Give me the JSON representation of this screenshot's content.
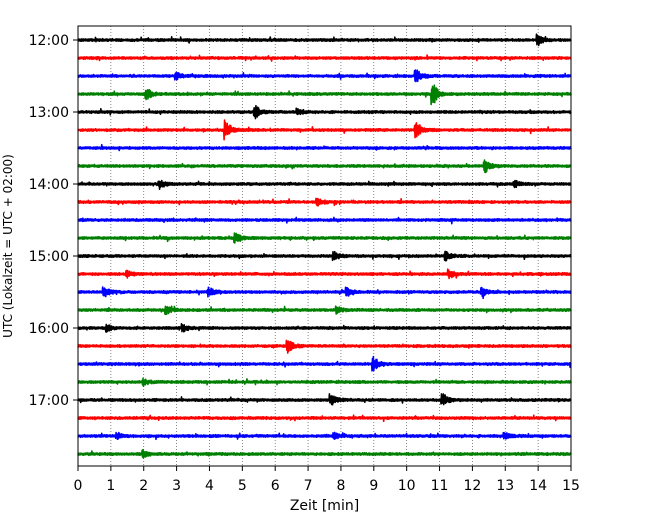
{
  "chart_data": {
    "type": "line",
    "title": "",
    "xlabel": "Zeit  [min]",
    "ylabel": "UTC (Lokalzeit = UTC + 02:00)",
    "xlim": [
      0,
      15
    ],
    "x_ticks": [
      "0",
      "1",
      "2",
      "3",
      "4",
      "5",
      "6",
      "7",
      "8",
      "9",
      "10",
      "11",
      "12",
      "13",
      "14",
      "15"
    ],
    "y_tick_labels": [
      "12:00",
      "13:00",
      "14:00",
      "15:00",
      "16:00",
      "17:00"
    ],
    "grid": "vertical dotted",
    "trace_colors": [
      "#000000",
      "#ff0000",
      "#0000ff",
      "#008000"
    ],
    "traces": [
      {
        "start": "12:00",
        "events": [
          {
            "t": 14.0,
            "amp": 5
          }
        ]
      },
      {
        "start": "12:15",
        "events": []
      },
      {
        "start": "12:30",
        "events": [
          {
            "t": 10.3,
            "amp": 6
          },
          {
            "t": 3.0,
            "amp": 3
          }
        ]
      },
      {
        "start": "12:45",
        "events": [
          {
            "t": 10.8,
            "amp": 11
          },
          {
            "t": 2.1,
            "amp": 5
          }
        ]
      },
      {
        "start": "13:00",
        "events": [
          {
            "t": 5.4,
            "amp": 6
          },
          {
            "t": 6.7,
            "amp": 3
          }
        ]
      },
      {
        "start": "13:15",
        "events": [
          {
            "t": 4.5,
            "amp": 9
          },
          {
            "t": 10.3,
            "amp": 8
          }
        ]
      },
      {
        "start": "13:30",
        "events": []
      },
      {
        "start": "13:45",
        "events": [
          {
            "t": 12.4,
            "amp": 6
          }
        ]
      },
      {
        "start": "14:00",
        "events": [
          {
            "t": 2.5,
            "amp": 4
          },
          {
            "t": 13.3,
            "amp": 3
          }
        ]
      },
      {
        "start": "14:15",
        "events": [
          {
            "t": 7.3,
            "amp": 3
          }
        ]
      },
      {
        "start": "14:30",
        "events": []
      },
      {
        "start": "14:45",
        "events": [
          {
            "t": 4.8,
            "amp": 5
          }
        ]
      },
      {
        "start": "15:00",
        "events": [
          {
            "t": 7.8,
            "amp": 4
          },
          {
            "t": 11.2,
            "amp": 4
          }
        ]
      },
      {
        "start": "15:15",
        "events": [
          {
            "t": 11.3,
            "amp": 4
          },
          {
            "t": 1.5,
            "amp": 3
          }
        ]
      },
      {
        "start": "15:30",
        "events": [
          {
            "t": 0.8,
            "amp": 5
          },
          {
            "t": 4.0,
            "amp": 4
          },
          {
            "t": 8.2,
            "amp": 4
          },
          {
            "t": 12.3,
            "amp": 4
          }
        ]
      },
      {
        "start": "15:45",
        "events": [
          {
            "t": 2.7,
            "amp": 4
          },
          {
            "t": 7.9,
            "amp": 3
          }
        ]
      },
      {
        "start": "16:00",
        "events": [
          {
            "t": 0.9,
            "amp": 3
          },
          {
            "t": 3.2,
            "amp": 3
          }
        ]
      },
      {
        "start": "16:15",
        "events": [
          {
            "t": 6.4,
            "amp": 6
          }
        ]
      },
      {
        "start": "16:30",
        "events": [
          {
            "t": 9.0,
            "amp": 7
          }
        ]
      },
      {
        "start": "16:45",
        "events": [
          {
            "t": 2.0,
            "amp": 3
          }
        ]
      },
      {
        "start": "17:00",
        "events": [
          {
            "t": 11.1,
            "amp": 7
          },
          {
            "t": 7.7,
            "amp": 5
          }
        ]
      },
      {
        "start": "17:15",
        "events": []
      },
      {
        "start": "17:30",
        "events": [
          {
            "t": 1.2,
            "amp": 3
          },
          {
            "t": 7.8,
            "amp": 3
          },
          {
            "t": 13.0,
            "amp": 3
          }
        ]
      },
      {
        "start": "17:45",
        "events": [
          {
            "t": 2.0,
            "amp": 3
          }
        ]
      }
    ]
  }
}
